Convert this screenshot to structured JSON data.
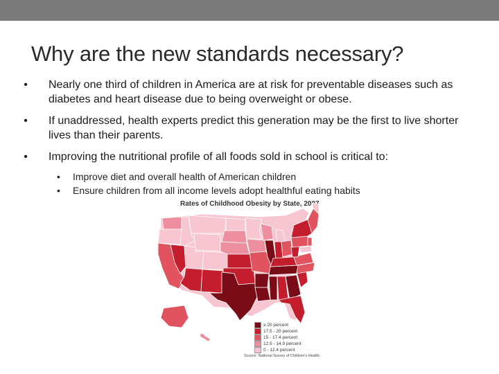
{
  "slide": {
    "title": "Why are the new standards necessary?",
    "bullets": [
      {
        "text": "Nearly one third of children in America are at risk for preventable diseases such as diabetes and heart disease due to being overweight or obese."
      },
      {
        "text": "If unaddressed, health experts predict this generation may be the first to live shorter lives than their parents."
      },
      {
        "text": "Improving the nutritional profile of all foods sold in school is critical to:",
        "sub": [
          "Improve diet and overall health of American children",
          "Ensure children from all income levels adopt healthful eating habits"
        ]
      }
    ],
    "bullet_glyph": "•"
  },
  "map": {
    "title": "Rates of Childhood Obesity by State, 2007",
    "legend": [
      {
        "label": "≥ 20 percent",
        "color": "#7a0c18"
      },
      {
        "label": "17.5 - 20 percent",
        "color": "#c41e2e"
      },
      {
        "label": "15 - 17.4 percent",
        "color": "#e0535f"
      },
      {
        "label": "12.5 - 14.9 percent",
        "color": "#ee8fa0"
      },
      {
        "label": "0 - 12.4 percent",
        "color": "#f7c6d1"
      }
    ],
    "source": "Source: National Survey of Children's Health."
  },
  "colors": {
    "top_bar": "#7a7a7a",
    "title": "#2a2a2a"
  }
}
